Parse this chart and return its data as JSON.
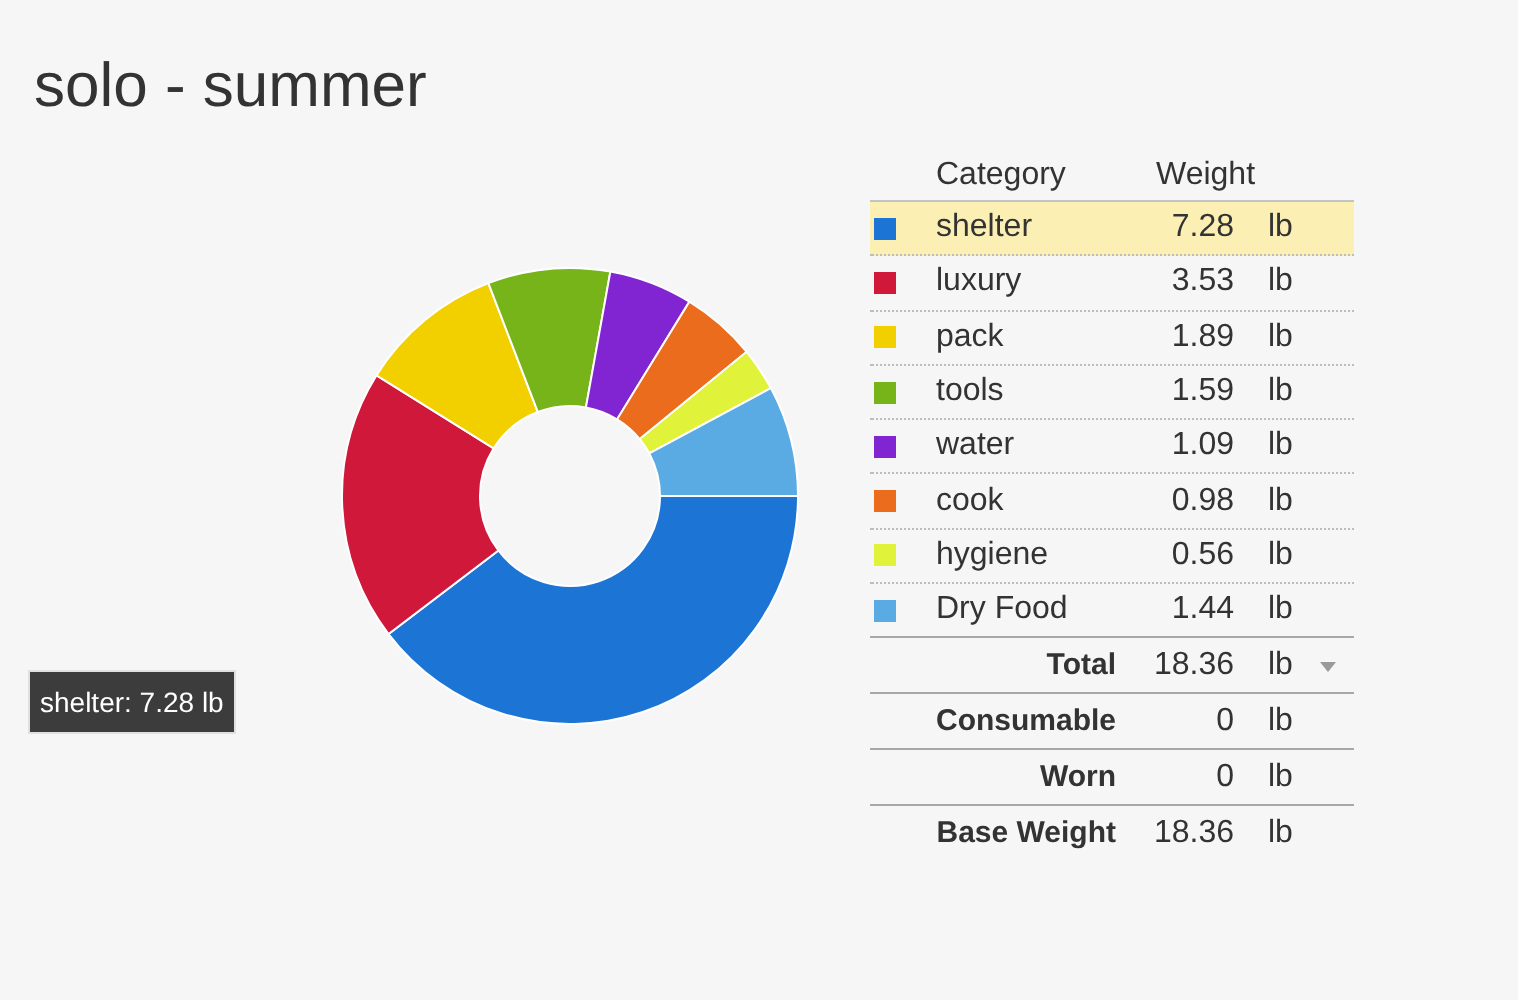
{
  "chart_data": {
    "type": "donut",
    "title": "solo - summer",
    "categories": [
      "shelter",
      "luxury",
      "pack",
      "tools",
      "water",
      "cook",
      "hygiene",
      "Dry Food"
    ],
    "values": [
      7.28,
      3.53,
      1.89,
      1.59,
      1.09,
      0.98,
      0.56,
      1.44
    ],
    "colors": [
      "#1c74d4",
      "#d0183a",
      "#f2d000",
      "#76b41a",
      "#8124d2",
      "#ea6c1c",
      "#e0f23a",
      "#5aabe3"
    ],
    "legend": "right",
    "legend_title": "Category",
    "data_labels": true,
    "annotations": [
      {
        "text": "shelter: 7.28 lb",
        "x": "shelter"
      },
      "Weight",
      "lb",
      "Total",
      "18.36",
      "Consumable",
      "0",
      "Worn",
      "0",
      "Base Weight",
      "18.36"
    ]
  }
}
